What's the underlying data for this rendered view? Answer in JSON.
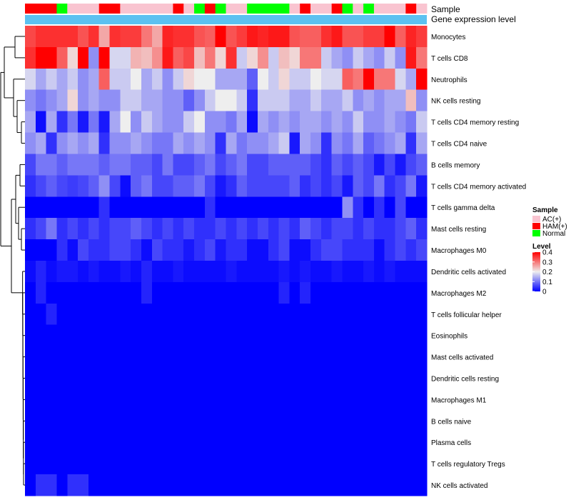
{
  "chart_data": {
    "type": "heatmap",
    "title": "",
    "top_annotations": [
      {
        "label": "Sample"
      },
      {
        "label": "Gene expression level"
      }
    ],
    "rows": [
      "Monocytes",
      "T cells CD8",
      "Neutrophils",
      "NK cells resting",
      "T cells CD4 memory resting",
      "T cells CD4 naive",
      "B cells memory",
      "T cells CD4 memory activated",
      "T cells gamma delta",
      "Mast cells resting",
      "Macrophages M0",
      "Dendritic cells activated",
      "Macrophages M2",
      "T cells follicular helper",
      "Eosinophils",
      "Mast cells activated",
      "Dendritic cells resting",
      "Macrophages M1",
      "B cells naive",
      "Plasma cells",
      "T cells regulatory  Tregs",
      "NK cells activated"
    ],
    "sample_groups": [
      "HAM(+)",
      "HAM(+)",
      "HAM(+)",
      "Normal",
      "AC(+)",
      "AC(+)",
      "AC(+)",
      "HAM(+)",
      "HAM(+)",
      "AC(+)",
      "AC(+)",
      "AC(+)",
      "AC(+)",
      "AC(+)",
      "HAM(+)",
      "AC(+)",
      "Normal",
      "HAM(+)",
      "Normal",
      "AC(+)",
      "AC(+)",
      "Normal",
      "Normal",
      "Normal",
      "Normal",
      "AC(+)",
      "HAM(+)",
      "AC(+)",
      "AC(+)",
      "HAM(+)",
      "Normal",
      "AC(+)",
      "Normal",
      "AC(+)",
      "AC(+)",
      "AC(+)",
      "HAM(+)",
      "AC(+)"
    ],
    "values": [
      [
        0.34,
        0.36,
        0.36,
        0.36,
        0.36,
        0.33,
        0.36,
        0.26,
        0.36,
        0.35,
        0.35,
        0.3,
        0.26,
        0.37,
        0.36,
        0.36,
        0.33,
        0.32,
        0.4,
        0.33,
        0.35,
        0.38,
        0.37,
        0.38,
        0.38,
        0.33,
        0.32,
        0.32,
        0.36,
        0.38,
        0.33,
        0.33,
        0.35,
        0.35,
        0.4,
        0.32,
        0.37,
        0.35
      ],
      [
        0.36,
        0.4,
        0.4,
        0.32,
        0.22,
        0.4,
        0.12,
        0.4,
        0.18,
        0.18,
        0.25,
        0.24,
        0.28,
        0.38,
        0.32,
        0.34,
        0.24,
        0.3,
        0.22,
        0.36,
        0.17,
        0.22,
        0.28,
        0.17,
        0.24,
        0.22,
        0.3,
        0.3,
        0.17,
        0.14,
        0.12,
        0.17,
        0.14,
        0.12,
        0.17,
        0.12,
        0.38,
        0.3
      ],
      [
        0.18,
        0.14,
        0.17,
        0.14,
        0.17,
        0.12,
        0.14,
        0.32,
        0.17,
        0.17,
        0.2,
        0.14,
        0.17,
        0.12,
        0.17,
        0.22,
        0.2,
        0.2,
        0.14,
        0.14,
        0.14,
        0.08,
        0.2,
        0.17,
        0.22,
        0.17,
        0.17,
        0.2,
        0.18,
        0.18,
        0.32,
        0.3,
        0.4,
        0.3,
        0.3,
        0.18,
        0.14,
        0.4
      ],
      [
        0.12,
        0.1,
        0.12,
        0.14,
        0.22,
        0.12,
        0.14,
        0.12,
        0.12,
        0.17,
        0.17,
        0.14,
        0.14,
        0.12,
        0.12,
        0.08,
        0.12,
        0.17,
        0.2,
        0.2,
        0.17,
        0.04,
        0.17,
        0.17,
        0.17,
        0.14,
        0.14,
        0.17,
        0.14,
        0.14,
        0.17,
        0.12,
        0.14,
        0.12,
        0.14,
        0.14,
        0.24,
        0.12
      ],
      [
        0.14,
        0.01,
        0.14,
        0.04,
        0.1,
        0.02,
        0.1,
        0.02,
        0.14,
        0.2,
        0.12,
        0.17,
        0.14,
        0.12,
        0.12,
        0.17,
        0.2,
        0.12,
        0.12,
        0.1,
        0.14,
        0.01,
        0.14,
        0.12,
        0.14,
        0.12,
        0.14,
        0.14,
        0.12,
        0.14,
        0.12,
        0.17,
        0.12,
        0.12,
        0.14,
        0.12,
        0.1,
        0.17
      ],
      [
        0.12,
        0.14,
        0.04,
        0.12,
        0.14,
        0.12,
        0.14,
        0.04,
        0.12,
        0.12,
        0.14,
        0.12,
        0.1,
        0.1,
        0.14,
        0.12,
        0.14,
        0.12,
        0.04,
        0.14,
        0.1,
        0.12,
        0.12,
        0.14,
        0.17,
        0.02,
        0.14,
        0.12,
        0.04,
        0.12,
        0.1,
        0.14,
        0.08,
        0.1,
        0.12,
        0.14,
        0.04,
        0.14
      ],
      [
        0.06,
        0.1,
        0.1,
        0.08,
        0.1,
        0.1,
        0.1,
        0.08,
        0.1,
        0.1,
        0.08,
        0.08,
        0.06,
        0.1,
        0.06,
        0.06,
        0.08,
        0.1,
        0.06,
        0.08,
        0.1,
        0.06,
        0.06,
        0.08,
        0.08,
        0.08,
        0.08,
        0.06,
        0.04,
        0.08,
        0.06,
        0.08,
        0.06,
        0.02,
        0.06,
        0.02,
        0.06,
        0.08
      ],
      [
        0.04,
        0.06,
        0.08,
        0.06,
        0.05,
        0.06,
        0.08,
        0.12,
        0.06,
        0.01,
        0.08,
        0.1,
        0.06,
        0.06,
        0.08,
        0.08,
        0.1,
        0.06,
        0.02,
        0.04,
        0.08,
        0.06,
        0.06,
        0.06,
        0.06,
        0.08,
        0.04,
        0.06,
        0.04,
        0.06,
        0.02,
        0.08,
        0.06,
        0.1,
        0.04,
        0.06,
        0.1,
        0.02
      ],
      [
        0.0,
        0.0,
        0.0,
        0.0,
        0.0,
        0.0,
        0.0,
        0.04,
        0.0,
        0.0,
        0.0,
        0.0,
        0.0,
        0.0,
        0.0,
        0.0,
        0.0,
        0.04,
        0.0,
        0.0,
        0.0,
        0.0,
        0.0,
        0.0,
        0.0,
        0.0,
        0.0,
        0.0,
        0.0,
        0.0,
        0.12,
        0.04,
        0.0,
        0.04,
        0.0,
        0.06,
        0.0,
        0.0
      ],
      [
        0.04,
        0.06,
        0.1,
        0.04,
        0.06,
        0.04,
        0.06,
        0.04,
        0.06,
        0.06,
        0.08,
        0.06,
        0.04,
        0.06,
        0.04,
        0.06,
        0.04,
        0.04,
        0.06,
        0.04,
        0.06,
        0.04,
        0.06,
        0.04,
        0.06,
        0.04,
        0.08,
        0.06,
        0.04,
        0.06,
        0.06,
        0.04,
        0.06,
        0.04,
        0.04,
        0.06,
        0.08,
        0.04
      ],
      [
        0.0,
        0.0,
        0.0,
        0.04,
        0.01,
        0.06,
        0.04,
        0.04,
        0.06,
        0.06,
        0.04,
        0.01,
        0.06,
        0.04,
        0.04,
        0.02,
        0.04,
        0.06,
        0.02,
        0.04,
        0.04,
        0.01,
        0.01,
        0.04,
        0.06,
        0.01,
        0.01,
        0.04,
        0.06,
        0.06,
        0.04,
        0.04,
        0.04,
        0.01,
        0.04,
        0.06,
        0.04,
        0.06
      ],
      [
        0.01,
        0.03,
        0.01,
        0.02,
        0.02,
        0.01,
        0.02,
        0.01,
        0.01,
        0.02,
        0.01,
        0.03,
        0.01,
        0.01,
        0.02,
        0.01,
        0.01,
        0.01,
        0.01,
        0.02,
        0.01,
        0.01,
        0.01,
        0.01,
        0.02,
        0.01,
        0.02,
        0.01,
        0.01,
        0.02,
        0.01,
        0.01,
        0.02,
        0.01,
        0.02,
        0.01,
        0.01,
        0.01
      ],
      [
        0.0,
        0.03,
        0.0,
        0.0,
        0.0,
        0.0,
        0.0,
        0.0,
        0.0,
        0.0,
        0.0,
        0.03,
        0.0,
        0.0,
        0.0,
        0.0,
        0.0,
        0.0,
        0.0,
        0.0,
        0.0,
        0.0,
        0.0,
        0.0,
        0.03,
        0.0,
        0.03,
        0.0,
        0.0,
        0.0,
        0.0,
        0.0,
        0.0,
        0.0,
        0.0,
        0.0,
        0.0,
        0.0
      ],
      [
        0.0,
        0.0,
        0.03,
        0.0,
        0.0,
        0.0,
        0.0,
        0.0,
        0.0,
        0.0,
        0.0,
        0.0,
        0.0,
        0.0,
        0.0,
        0.0,
        0.0,
        0.0,
        0.0,
        0.0,
        0.0,
        0.0,
        0.0,
        0.0,
        0.0,
        0.0,
        0.0,
        0.0,
        0.0,
        0.0,
        0.0,
        0.0,
        0.0,
        0.0,
        0.0,
        0.0,
        0.0,
        0.0
      ],
      [
        0.0,
        0.0,
        0.0,
        0.0,
        0.0,
        0.0,
        0.0,
        0.0,
        0.0,
        0.0,
        0.0,
        0.0,
        0.0,
        0.0,
        0.0,
        0.0,
        0.0,
        0.0,
        0.0,
        0.0,
        0.0,
        0.0,
        0.0,
        0.0,
        0.0,
        0.0,
        0.0,
        0.0,
        0.0,
        0.0,
        0.0,
        0.0,
        0.0,
        0.0,
        0.0,
        0.0,
        0.0,
        0.0
      ],
      [
        0.0,
        0.0,
        0.0,
        0.0,
        0.0,
        0.0,
        0.0,
        0.0,
        0.0,
        0.0,
        0.0,
        0.0,
        0.0,
        0.0,
        0.0,
        0.0,
        0.0,
        0.0,
        0.0,
        0.0,
        0.0,
        0.0,
        0.0,
        0.0,
        0.0,
        0.0,
        0.0,
        0.0,
        0.0,
        0.0,
        0.0,
        0.0,
        0.0,
        0.0,
        0.0,
        0.0,
        0.0,
        0.0
      ],
      [
        0.0,
        0.0,
        0.0,
        0.0,
        0.0,
        0.0,
        0.0,
        0.0,
        0.0,
        0.0,
        0.0,
        0.0,
        0.0,
        0.0,
        0.0,
        0.0,
        0.0,
        0.0,
        0.0,
        0.0,
        0.0,
        0.0,
        0.0,
        0.0,
        0.0,
        0.0,
        0.0,
        0.0,
        0.0,
        0.0,
        0.0,
        0.0,
        0.0,
        0.0,
        0.0,
        0.0,
        0.0,
        0.0
      ],
      [
        0.0,
        0.0,
        0.0,
        0.0,
        0.0,
        0.0,
        0.0,
        0.0,
        0.0,
        0.0,
        0.0,
        0.0,
        0.0,
        0.0,
        0.0,
        0.0,
        0.0,
        0.0,
        0.0,
        0.0,
        0.0,
        0.0,
        0.0,
        0.0,
        0.0,
        0.0,
        0.0,
        0.0,
        0.0,
        0.0,
        0.0,
        0.0,
        0.0,
        0.0,
        0.0,
        0.0,
        0.0,
        0.0
      ],
      [
        0.0,
        0.0,
        0.0,
        0.0,
        0.0,
        0.0,
        0.0,
        0.0,
        0.0,
        0.0,
        0.0,
        0.0,
        0.0,
        0.0,
        0.0,
        0.0,
        0.0,
        0.0,
        0.0,
        0.0,
        0.0,
        0.0,
        0.0,
        0.0,
        0.0,
        0.0,
        0.0,
        0.0,
        0.0,
        0.0,
        0.0,
        0.0,
        0.0,
        0.0,
        0.0,
        0.0,
        0.0,
        0.0
      ],
      [
        0.0,
        0.0,
        0.0,
        0.0,
        0.0,
        0.0,
        0.0,
        0.0,
        0.0,
        0.0,
        0.0,
        0.0,
        0.0,
        0.0,
        0.0,
        0.0,
        0.0,
        0.0,
        0.0,
        0.0,
        0.0,
        0.0,
        0.0,
        0.0,
        0.0,
        0.0,
        0.0,
        0.0,
        0.0,
        0.0,
        0.0,
        0.0,
        0.0,
        0.0,
        0.0,
        0.0,
        0.0,
        0.0
      ],
      [
        0.0,
        0.0,
        0.0,
        0.0,
        0.0,
        0.0,
        0.0,
        0.0,
        0.0,
        0.0,
        0.0,
        0.0,
        0.0,
        0.0,
        0.0,
        0.0,
        0.0,
        0.0,
        0.0,
        0.0,
        0.0,
        0.0,
        0.0,
        0.0,
        0.0,
        0.0,
        0.0,
        0.0,
        0.0,
        0.0,
        0.0,
        0.0,
        0.0,
        0.0,
        0.0,
        0.0,
        0.0,
        0.0
      ],
      [
        0.0,
        0.04,
        0.04,
        0.0,
        0.04,
        0.04,
        0.0,
        0.0,
        0.0,
        0.0,
        0.0,
        0.0,
        0.0,
        0.0,
        0.0,
        0.0,
        0.0,
        0.0,
        0.0,
        0.0,
        0.0,
        0.0,
        0.0,
        0.0,
        0.0,
        0.0,
        0.0,
        0.0,
        0.0,
        0.0,
        0.0,
        0.0,
        0.0,
        0.0,
        0.0,
        0.0,
        0.0,
        0.0
      ]
    ],
    "color_scale": {
      "stops": [
        {
          "value": 0,
          "color": "#0000ff"
        },
        {
          "value": 0.2,
          "color": "#eeeeee"
        },
        {
          "value": 0.4,
          "color": "#ff0000"
        }
      ]
    },
    "gene_expression_color": "#5cc1f0",
    "legend": {
      "position": "right",
      "sample": {
        "title": "Sample",
        "entries": [
          {
            "label": "AC(+)",
            "color": "#f9c4d0"
          },
          {
            "label": "HAM(+)",
            "color": "#ff0000"
          },
          {
            "label": "Normal",
            "color": "#00ff00"
          }
        ]
      },
      "level": {
        "title": "Level",
        "ticks": [
          "0.4",
          "0.3",
          "0.2",
          "0.1",
          "0"
        ],
        "tick_values": [
          0.4,
          0.3,
          0.2,
          0.1,
          0
        ]
      }
    }
  }
}
